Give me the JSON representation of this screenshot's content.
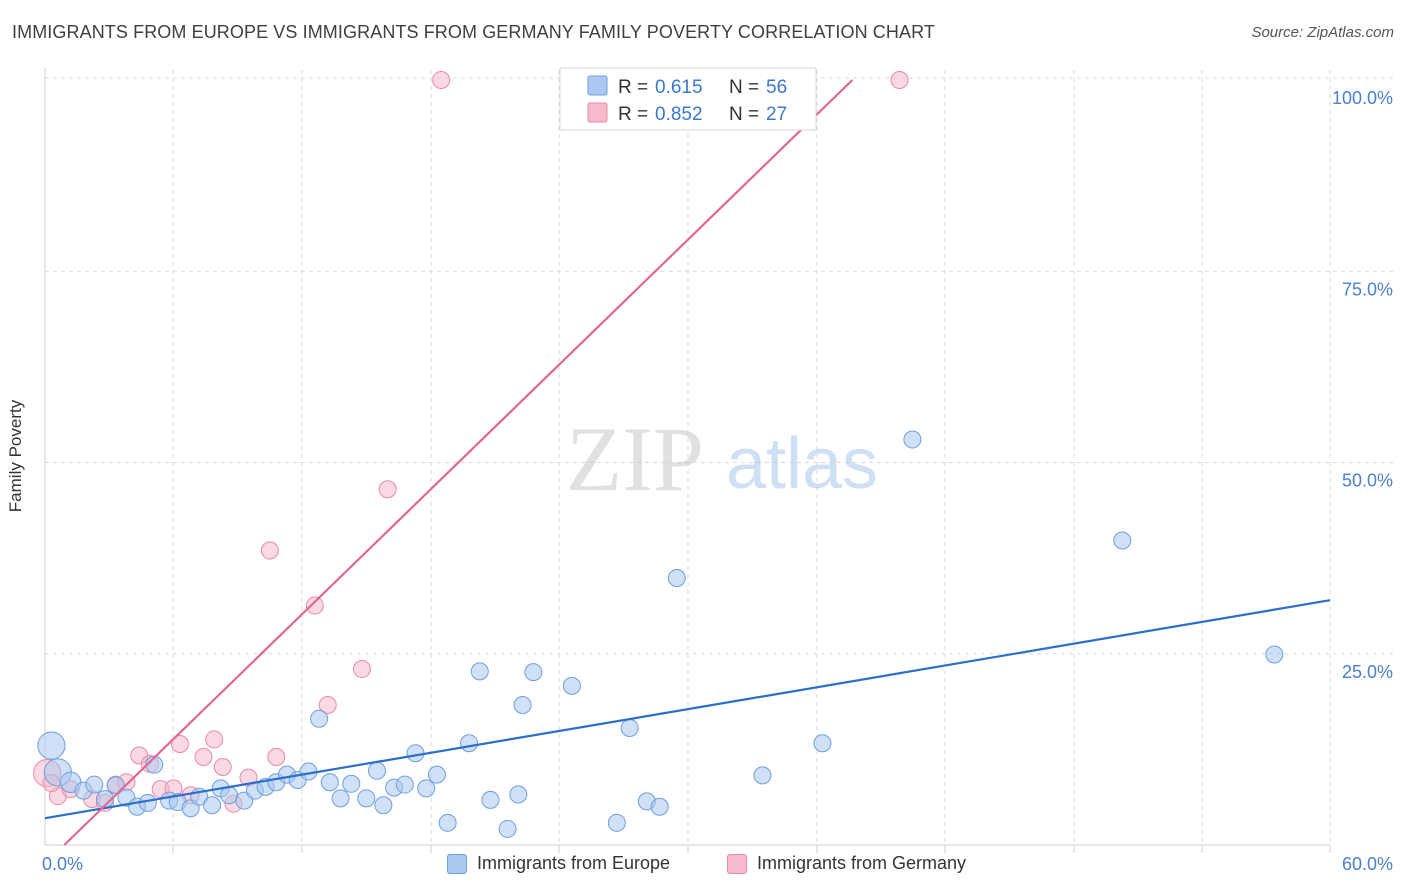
{
  "header": {
    "title": "IMMIGRANTS FROM EUROPE VS IMMIGRANTS FROM GERMANY FAMILY POVERTY CORRELATION CHART",
    "source": "Source: ZipAtlas.com"
  },
  "watermark": {
    "zip": "ZIP",
    "atlas": "atlas"
  },
  "colors": {
    "europe_fill": "#aac8f0",
    "europe_stroke": "#6e9fdc",
    "europe_line": "#2a6fcc",
    "germany_fill": "#f7b9cb",
    "germany_stroke": "#e98aa6",
    "germany_line": "#e06790",
    "tick_label": "#4a80cc",
    "grid": "#d8d8d8"
  },
  "legend": {
    "rows": [
      {
        "r_label": "R =",
        "r_value": "0.615",
        "n_label": "N =",
        "n_value": "56"
      },
      {
        "r_label": "R =",
        "r_value": "0.852",
        "n_label": "N =",
        "n_value": "27"
      }
    ]
  },
  "chart_data": {
    "type": "scatter",
    "ylabel": "Family Poverty",
    "xlim": [
      0,
      60
    ],
    "ylim": [
      0,
      100
    ],
    "x_ticks": [
      "0.0%",
      "60.0%"
    ],
    "y_ticks": [
      {
        "value": 100,
        "label": "100.0%"
      },
      {
        "value": 75,
        "label": "75.0%"
      },
      {
        "value": 50,
        "label": "50.0%"
      },
      {
        "value": 25,
        "label": "25.0%"
      }
    ],
    "grid": true,
    "legend_position": "top-center",
    "series": [
      {
        "name": "Immigrants from Europe",
        "color": "#aac8f0",
        "trend": {
          "x": [
            0,
            60
          ],
          "y": [
            3.5,
            32
          ]
        },
        "points": [
          [
            0.3,
            13,
            1.6
          ],
          [
            0.6,
            9.5,
            1.6
          ],
          [
            1.2,
            8.2,
            1.2
          ],
          [
            1.8,
            7.1,
            1.0
          ],
          [
            2.3,
            7.9,
            1.0
          ],
          [
            2.8,
            6.0,
            1.0
          ],
          [
            3.3,
            7.8,
            1.0
          ],
          [
            3.8,
            6.2,
            1.0
          ],
          [
            4.3,
            5.0,
            1.0
          ],
          [
            4.8,
            5.5,
            1.0
          ],
          [
            5.1,
            10.5,
            1.0
          ],
          [
            5.8,
            5.8,
            1.0
          ],
          [
            6.2,
            5.6,
            1.0
          ],
          [
            6.8,
            4.8,
            1.0
          ],
          [
            7.2,
            6.3,
            1.0
          ],
          [
            7.8,
            5.2,
            1.0
          ],
          [
            8.2,
            7.4,
            1.0
          ],
          [
            8.6,
            6.5,
            1.0
          ],
          [
            9.3,
            5.8,
            1.0
          ],
          [
            9.8,
            7.1,
            1.0
          ],
          [
            10.3,
            7.6,
            1.0
          ],
          [
            10.8,
            8.2,
            1.0
          ],
          [
            11.3,
            9.2,
            1.0
          ],
          [
            11.8,
            8.5,
            1.0
          ],
          [
            12.3,
            9.6,
            1.0
          ],
          [
            12.8,
            16.5,
            1.0
          ],
          [
            13.3,
            8.2,
            1.0
          ],
          [
            13.8,
            6.1,
            1.0
          ],
          [
            14.3,
            8.0,
            1.0
          ],
          [
            15.0,
            6.1,
            1.0
          ],
          [
            15.5,
            9.7,
            1.0
          ],
          [
            15.8,
            5.2,
            1.0
          ],
          [
            16.3,
            7.5,
            1.0
          ],
          [
            16.8,
            7.9,
            1.0
          ],
          [
            17.3,
            12.0,
            1.0
          ],
          [
            17.8,
            7.4,
            1.0
          ],
          [
            18.3,
            9.2,
            1.0
          ],
          [
            18.8,
            2.9,
            1.0
          ],
          [
            19.8,
            13.3,
            1.0
          ],
          [
            20.3,
            22.7,
            1.0
          ],
          [
            20.8,
            5.9,
            1.0
          ],
          [
            21.6,
            2.1,
            1.0
          ],
          [
            22.1,
            6.6,
            1.0
          ],
          [
            22.3,
            18.3,
            1.0
          ],
          [
            22.8,
            22.6,
            1.0
          ],
          [
            24.6,
            20.8,
            1.0
          ],
          [
            26.7,
            2.9,
            1.0
          ],
          [
            27.3,
            15.3,
            1.0
          ],
          [
            28.1,
            5.7,
            1.0
          ],
          [
            28.7,
            5.0,
            1.0
          ],
          [
            29.5,
            34.9,
            1.0
          ],
          [
            33.5,
            9.1,
            1.0
          ],
          [
            36.3,
            13.3,
            1.0
          ],
          [
            40.5,
            53.0,
            1.0
          ],
          [
            50.3,
            39.8,
            1.0
          ],
          [
            57.4,
            24.9,
            1.0
          ]
        ]
      },
      {
        "name": "Immigrants from Germany",
        "color": "#f7b9cb",
        "trend": {
          "x": [
            0.9,
            37.7
          ],
          "y": [
            0,
            100
          ]
        },
        "points": [
          [
            0.1,
            9.4,
            1.6
          ],
          [
            0.6,
            6.4,
            1.0
          ],
          [
            1.2,
            7.3,
            1.0
          ],
          [
            2.2,
            6.0,
            1.0
          ],
          [
            2.8,
            5.5,
            1.0
          ],
          [
            3.3,
            7.9,
            1.0
          ],
          [
            3.8,
            8.2,
            1.0
          ],
          [
            4.4,
            11.7,
            1.0
          ],
          [
            4.9,
            10.6,
            1.0
          ],
          [
            5.4,
            7.3,
            1.0
          ],
          [
            6.0,
            7.4,
            1.0
          ],
          [
            6.3,
            13.2,
            1.0
          ],
          [
            6.8,
            6.5,
            1.0
          ],
          [
            7.4,
            11.5,
            1.0
          ],
          [
            7.9,
            13.8,
            1.0
          ],
          [
            8.3,
            10.2,
            1.0
          ],
          [
            8.8,
            5.4,
            1.0
          ],
          [
            9.5,
            8.8,
            1.0
          ],
          [
            10.5,
            38.5,
            1.0
          ],
          [
            10.8,
            11.5,
            1.0
          ],
          [
            12.6,
            31.3,
            1.0
          ],
          [
            13.2,
            18.3,
            1.0
          ],
          [
            14.8,
            23.0,
            1.0
          ],
          [
            16.0,
            46.5,
            1.0
          ],
          [
            18.5,
            100.0,
            1.0
          ],
          [
            39.9,
            100.0,
            1.0
          ],
          [
            0.3,
            8.1,
            1.0
          ]
        ]
      }
    ]
  }
}
